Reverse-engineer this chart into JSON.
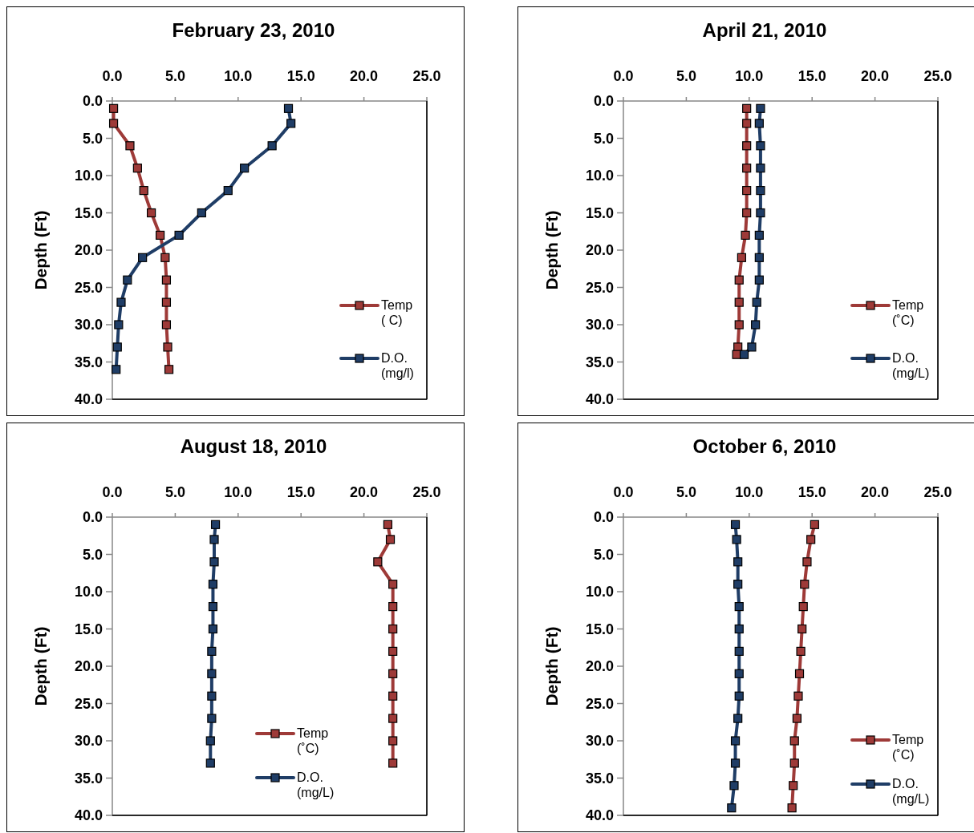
{
  "chart_data": [
    {
      "type": "line",
      "title": "February 23, 2010",
      "ylabel": "Depth (Ft)",
      "xlim": [
        0,
        25
      ],
      "xticks": [
        {
          "value": 0,
          "label": "0.0"
        },
        {
          "value": 5,
          "label": "5.0"
        },
        {
          "value": 10,
          "label": "10.0"
        },
        {
          "value": 15,
          "label": "15.0"
        },
        {
          "value": 20,
          "label": "20.0"
        },
        {
          "value": 25,
          "label": "25.0"
        }
      ],
      "ylim": [
        40,
        0
      ],
      "yticks": [
        {
          "value": 0,
          "label": "0.0"
        },
        {
          "value": 5,
          "label": "5.0"
        },
        {
          "value": 10,
          "label": "10.0"
        },
        {
          "value": 15,
          "label": "15.0"
        },
        {
          "value": 20,
          "label": "20.0"
        },
        {
          "value": 25,
          "label": "25.0"
        },
        {
          "value": 30,
          "label": "30.0"
        },
        {
          "value": 35,
          "label": "35.0"
        },
        {
          "value": 40,
          "label": "40.0"
        }
      ],
      "grid": false,
      "legend": "right",
      "marker": "square",
      "line_style": "solid",
      "series": [
        {
          "name": "Temp\n( C)",
          "color": "#9e3a38",
          "x": [
            0.1,
            0.1,
            1.4,
            2.0,
            2.5,
            3.1,
            3.8,
            4.2,
            4.3,
            4.3,
            4.3,
            4.4,
            4.5
          ],
          "values": [
            1,
            3,
            6,
            9,
            12,
            15,
            18,
            21,
            24,
            27,
            30,
            33,
            36
          ]
        },
        {
          "name": "D.O.\n(mg/l)",
          "color": "#1f3d66",
          "x": [
            14.0,
            14.2,
            12.7,
            10.5,
            9.2,
            7.1,
            5.3,
            2.4,
            1.2,
            0.7,
            0.5,
            0.4,
            0.3
          ],
          "values": [
            1,
            3,
            6,
            9,
            12,
            15,
            18,
            21,
            24,
            27,
            30,
            33,
            36
          ]
        }
      ]
    },
    {
      "type": "line",
      "title": "April 21, 2010",
      "ylabel": "Depth (Ft)",
      "xlim": [
        0,
        25
      ],
      "xticks": [
        {
          "value": 0,
          "label": "0.0"
        },
        {
          "value": 5,
          "label": "5.0"
        },
        {
          "value": 10,
          "label": "10.0"
        },
        {
          "value": 15,
          "label": "15.0"
        },
        {
          "value": 20,
          "label": "20.0"
        },
        {
          "value": 25,
          "label": "25.0"
        }
      ],
      "ylim": [
        40,
        0
      ],
      "yticks": [
        {
          "value": 0,
          "label": "0.0"
        },
        {
          "value": 5,
          "label": "5.0"
        },
        {
          "value": 10,
          "label": "10.0"
        },
        {
          "value": 15,
          "label": "15.0"
        },
        {
          "value": 20,
          "label": "20.0"
        },
        {
          "value": 25,
          "label": "25.0"
        },
        {
          "value": 30,
          "label": "30.0"
        },
        {
          "value": 35,
          "label": "35.0"
        },
        {
          "value": 40,
          "label": "40.0"
        }
      ],
      "grid": false,
      "legend": "right",
      "marker": "square",
      "line_style": "solid",
      "series": [
        {
          "name": "Temp\n(˚C)",
          "color": "#9e3a38",
          "x": [
            9.8,
            9.8,
            9.8,
            9.8,
            9.8,
            9.8,
            9.7,
            9.4,
            9.2,
            9.2,
            9.2,
            9.1,
            9.0
          ],
          "values": [
            1,
            3,
            6,
            9,
            12,
            15,
            18,
            21,
            24,
            27,
            30,
            33,
            34
          ]
        },
        {
          "name": "D.O.\n(mg/L)",
          "color": "#1f3d66",
          "x": [
            10.9,
            10.8,
            10.9,
            10.9,
            10.9,
            10.9,
            10.8,
            10.8,
            10.8,
            10.6,
            10.5,
            10.2,
            9.6
          ],
          "values": [
            1,
            3,
            6,
            9,
            12,
            15,
            18,
            21,
            24,
            27,
            30,
            33,
            34
          ]
        }
      ]
    },
    {
      "type": "line",
      "title": "August 18, 2010",
      "ylabel": "Depth (Ft)",
      "xlim": [
        0,
        25
      ],
      "xticks": [
        {
          "value": 0,
          "label": "0.0"
        },
        {
          "value": 5,
          "label": "5.0"
        },
        {
          "value": 10,
          "label": "10.0"
        },
        {
          "value": 15,
          "label": "15.0"
        },
        {
          "value": 20,
          "label": "20.0"
        },
        {
          "value": 25,
          "label": "25.0"
        }
      ],
      "ylim": [
        40,
        0
      ],
      "yticks": [
        {
          "value": 0,
          "label": "0.0"
        },
        {
          "value": 5,
          "label": "5.0"
        },
        {
          "value": 10,
          "label": "10.0"
        },
        {
          "value": 15,
          "label": "15.0"
        },
        {
          "value": 20,
          "label": "20.0"
        },
        {
          "value": 25,
          "label": "25.0"
        },
        {
          "value": 30,
          "label": "30.0"
        },
        {
          "value": 35,
          "label": "35.0"
        },
        {
          "value": 40,
          "label": "40.0"
        }
      ],
      "grid": false,
      "legend": "bottom",
      "marker": "square",
      "line_style": "solid",
      "series": [
        {
          "name": "Temp\n(˚C)",
          "color": "#9e3a38",
          "x": [
            21.9,
            22.1,
            21.1,
            22.3,
            22.3,
            22.3,
            22.3,
            22.3,
            22.3,
            22.3,
            22.3,
            22.3
          ],
          "values": [
            1,
            3,
            6,
            9,
            12,
            15,
            18,
            21,
            24,
            27,
            30,
            33
          ]
        },
        {
          "name": "D.O.\n(mg/L)",
          "color": "#1f3d66",
          "x": [
            8.2,
            8.1,
            8.1,
            8.0,
            8.0,
            8.0,
            7.9,
            7.9,
            7.9,
            7.9,
            7.8,
            7.8
          ],
          "values": [
            1,
            3,
            6,
            9,
            12,
            15,
            18,
            21,
            24,
            27,
            30,
            33
          ]
        }
      ]
    },
    {
      "type": "line",
      "title": "October 6, 2010",
      "ylabel": "Depth (Ft)",
      "xlim": [
        0,
        25
      ],
      "xticks": [
        {
          "value": 0,
          "label": "0.0"
        },
        {
          "value": 5,
          "label": "5.0"
        },
        {
          "value": 10,
          "label": "10.0"
        },
        {
          "value": 15,
          "label": "15.0"
        },
        {
          "value": 20,
          "label": "20.0"
        },
        {
          "value": 25,
          "label": "25.0"
        }
      ],
      "ylim": [
        40,
        0
      ],
      "yticks": [
        {
          "value": 0,
          "label": "0.0"
        },
        {
          "value": 5,
          "label": "5.0"
        },
        {
          "value": 10,
          "label": "10.0"
        },
        {
          "value": 15,
          "label": "15.0"
        },
        {
          "value": 20,
          "label": "20.0"
        },
        {
          "value": 25,
          "label": "25.0"
        },
        {
          "value": 30,
          "label": "30.0"
        },
        {
          "value": 35,
          "label": "35.0"
        },
        {
          "value": 40,
          "label": "40.0"
        }
      ],
      "grid": false,
      "legend": "bottom right",
      "marker": "square",
      "line_style": "solid",
      "series": [
        {
          "name": "Temp\n(˚C)",
          "color": "#9e3a38",
          "x": [
            15.2,
            14.9,
            14.6,
            14.4,
            14.3,
            14.2,
            14.1,
            14.0,
            13.9,
            13.8,
            13.6,
            13.6,
            13.5,
            13.4
          ],
          "values": [
            1,
            3,
            6,
            9,
            12,
            15,
            18,
            21,
            24,
            27,
            30,
            33,
            36,
            39
          ]
        },
        {
          "name": "D.O.\n(mg/L)",
          "color": "#1f3d66",
          "x": [
            8.9,
            9.0,
            9.1,
            9.1,
            9.2,
            9.2,
            9.2,
            9.2,
            9.2,
            9.1,
            8.9,
            8.9,
            8.8,
            8.6
          ],
          "values": [
            1,
            3,
            6,
            9,
            12,
            15,
            18,
            21,
            24,
            27,
            30,
            33,
            36,
            39
          ]
        }
      ]
    }
  ]
}
